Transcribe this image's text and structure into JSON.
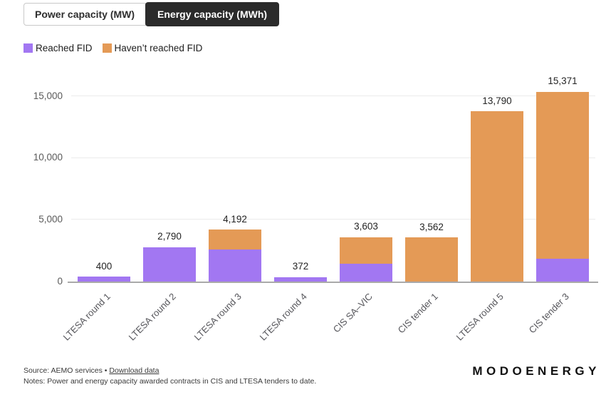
{
  "toggle": {
    "options": [
      {
        "label": "Power capacity (MW)",
        "active": false
      },
      {
        "label": "Energy capacity (MWh)",
        "active": true
      }
    ]
  },
  "legend": [
    {
      "label": "Reached FID",
      "color": "#a277f2"
    },
    {
      "label": "Haven’t reached FID",
      "color": "#e49a56"
    }
  ],
  "chart_data": {
    "type": "bar",
    "stacked": true,
    "title": "",
    "xlabel": "",
    "ylabel": "",
    "categories": [
      "LTESA round 1",
      "LTESA round 2",
      "LTESA round 3",
      "LTESA round 4",
      "CIS SA–VIC",
      "CIS tender 1",
      "LTESA round 5",
      "CIS tender 3"
    ],
    "series": [
      {
        "name": "Reached FID",
        "color": "#a277f2",
        "values": [
          400,
          2790,
          2590,
          372,
          1440,
          0,
          0,
          1860
        ]
      },
      {
        "name": "Haven’t reached FID",
        "color": "#e49a56",
        "values": [
          0,
          0,
          1602,
          0,
          2163,
          3562,
          13790,
          13511
        ]
      }
    ],
    "totals": [
      400,
      2790,
      4192,
      372,
      3603,
      3562,
      13790,
      15371
    ],
    "total_labels": [
      "400",
      "2,790",
      "4,192",
      "372",
      "3,603",
      "3,562",
      "13,790",
      "15,371"
    ],
    "yticks": [
      0,
      5000,
      10000,
      15000
    ],
    "ytick_labels": [
      "0",
      "5,000",
      "10,000",
      "15,000"
    ],
    "ylim": [
      0,
      16450
    ],
    "grid": true,
    "legend_position": "top-left"
  },
  "footer": {
    "source_prefix": "Source: AEMO services • ",
    "download_link": "Download data",
    "notes": "Notes: Power and energy capacity awarded contracts in CIS and LTESA tenders to date."
  },
  "brand": "MODOENERGY"
}
